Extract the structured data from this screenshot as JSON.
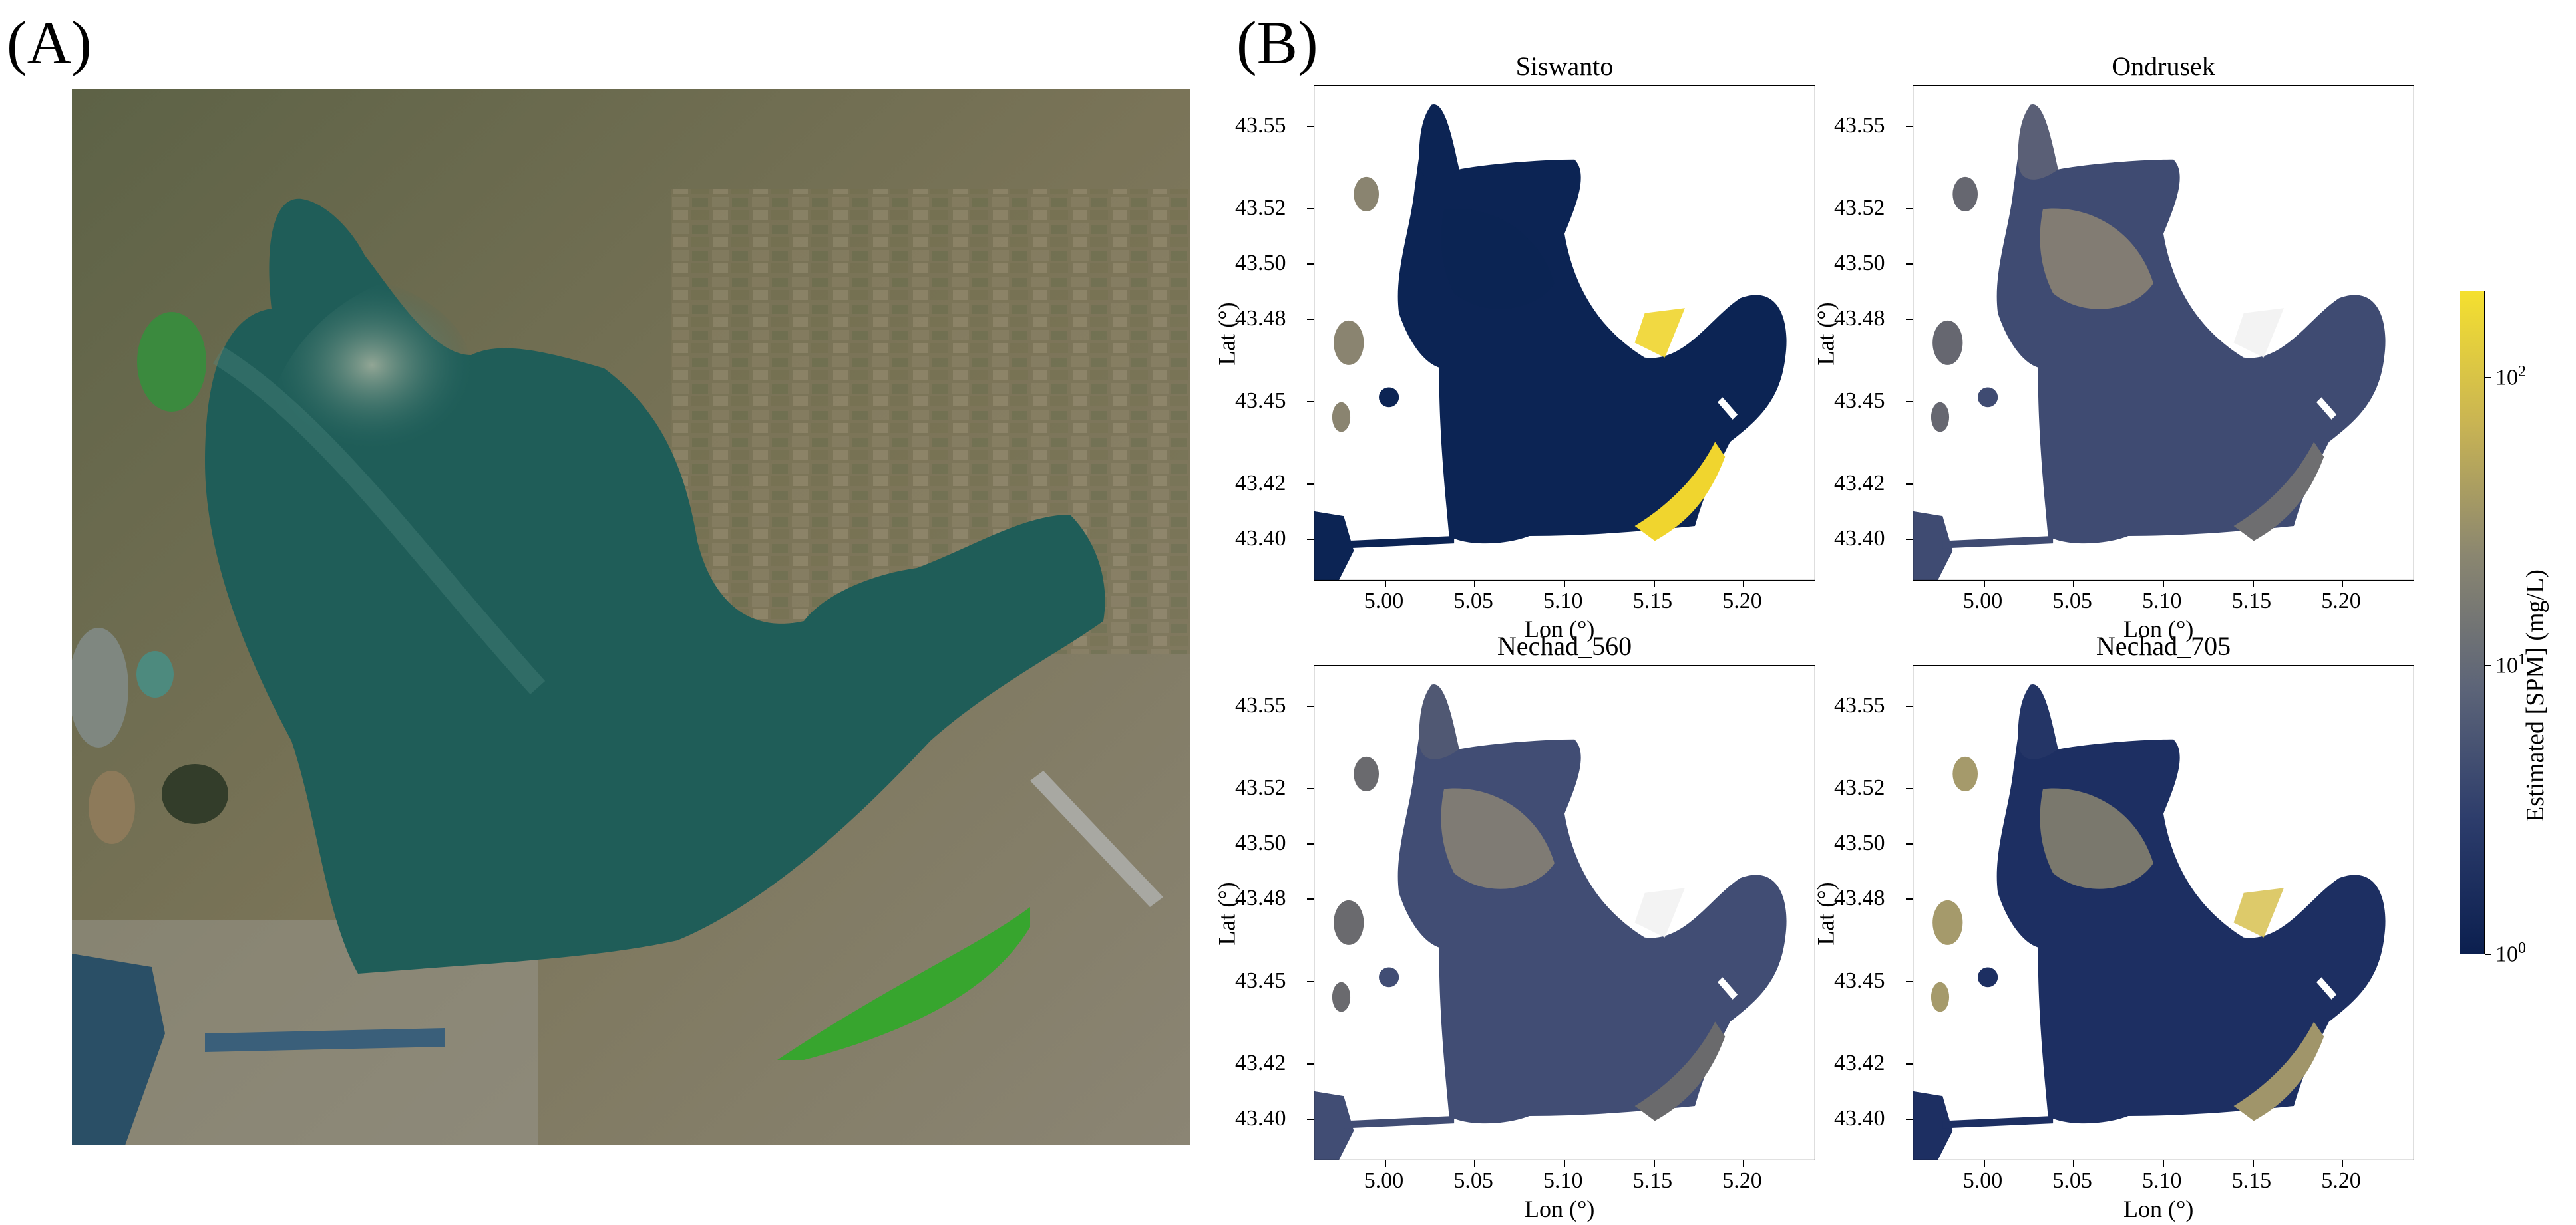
{
  "figure": {
    "panel_a_label": "(A)",
    "panel_b_label": "(B)"
  },
  "axes": {
    "xlabel": "Lon (°)",
    "ylabel": "Lat (°)",
    "xticks": [
      "5.00",
      "5.05",
      "5.10",
      "5.15",
      "5.20"
    ],
    "yticks": [
      "43.55",
      "43.52",
      "43.50",
      "43.48",
      "43.45",
      "43.42",
      "43.40"
    ]
  },
  "subplots": [
    {
      "title": "Siswanto",
      "style": "siswanto"
    },
    {
      "title": "Ondrusek",
      "style": "ondrusek"
    },
    {
      "title": "Nechad_560",
      "style": "nechad560"
    },
    {
      "title": "Nechad_705",
      "style": "nechad705"
    }
  ],
  "colorbar": {
    "label": "Estimated [SPM] (mg/L)",
    "scale": "log",
    "range": [
      1,
      200
    ],
    "ticks": [
      {
        "base": "10",
        "exp": "0",
        "value": 1
      },
      {
        "base": "10",
        "exp": "1",
        "value": 10
      },
      {
        "base": "10",
        "exp": "2",
        "value": 100
      }
    ],
    "colors": [
      "#0b1f4f",
      "#2c3c6b",
      "#5c6478",
      "#8a8670",
      "#c9b453",
      "#f5e02f"
    ]
  },
  "colors": {
    "water_low": "#0c2454",
    "water_mid": "#3b4a74",
    "plume": "#8a8476",
    "high": "#f0d52e",
    "sat_water": "#1f5c58",
    "sat_land": "#6d6a4d"
  }
}
